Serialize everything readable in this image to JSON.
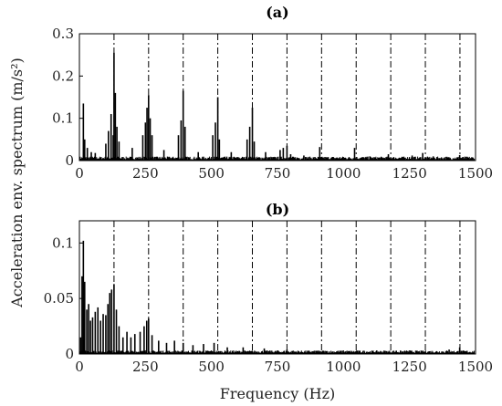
{
  "figure": {
    "ylabel": "Acceleration env. spectrum (m/s²)",
    "xlabel": "Frequency (Hz)"
  },
  "chart_data": [
    {
      "type": "line",
      "title": "(a)",
      "xlim": [
        0,
        1500
      ],
      "ylim": [
        0,
        0.3
      ],
      "x_ticks": [
        0,
        250,
        500,
        750,
        1000,
        1250,
        1500
      ],
      "y_ticks": [
        0,
        0.1,
        0.2,
        0.3
      ],
      "y_tick_labels": [
        "0",
        "0.1",
        "0.2",
        "0.3"
      ],
      "noise_floor": 0.006,
      "series": [
        {
          "values": [
            [
              15,
              0.135
            ],
            [
              20,
              0.05
            ],
            [
              30,
              0.03
            ],
            [
              45,
              0.02
            ],
            [
              60,
              0.018
            ],
            [
              100,
              0.04
            ],
            [
              110,
              0.07
            ],
            [
              120,
              0.11
            ],
            [
              128,
              0.06
            ],
            [
              131,
              0.255
            ],
            [
              136,
              0.16
            ],
            [
              142,
              0.08
            ],
            [
              150,
              0.045
            ],
            [
              200,
              0.03
            ],
            [
              240,
              0.06
            ],
            [
              250,
              0.09
            ],
            [
              256,
              0.125
            ],
            [
              262,
              0.155
            ],
            [
              268,
              0.1
            ],
            [
              275,
              0.06
            ],
            [
              320,
              0.025
            ],
            [
              375,
              0.06
            ],
            [
              385,
              0.095
            ],
            [
              393,
              0.165
            ],
            [
              400,
              0.08
            ],
            [
              450,
              0.02
            ],
            [
              505,
              0.06
            ],
            [
              515,
              0.09
            ],
            [
              524,
              0.15
            ],
            [
              530,
              0.05
            ],
            [
              575,
              0.02
            ],
            [
              635,
              0.05
            ],
            [
              645,
              0.08
            ],
            [
              655,
              0.125
            ],
            [
              662,
              0.045
            ],
            [
              705,
              0.02
            ],
            [
              760,
              0.025
            ],
            [
              772,
              0.03
            ],
            [
              786,
              0.035
            ],
            [
              800,
              0.015
            ],
            [
              850,
              0.012
            ],
            [
              910,
              0.032
            ],
            [
              1042,
              0.03
            ],
            [
              1100,
              0.01
            ],
            [
              1170,
              0.015
            ],
            [
              1260,
              0.012
            ],
            [
              1300,
              0.018
            ],
            [
              1340,
              0.01
            ],
            [
              1440,
              0.013
            ]
          ]
        }
      ],
      "markers_x": [
        131,
        262,
        393,
        524,
        655,
        786,
        917,
        1048,
        1179,
        1310,
        1441
      ]
    },
    {
      "type": "line",
      "title": "(b)",
      "xlim": [
        0,
        1500
      ],
      "ylim": [
        0,
        0.12
      ],
      "x_ticks": [
        0,
        250,
        500,
        750,
        1000,
        1250,
        1500
      ],
      "y_ticks": [
        0,
        0.05,
        0.1
      ],
      "y_tick_labels": [
        "0",
        "0.05",
        "0.1"
      ],
      "noise_floor": 0.002,
      "series": [
        {
          "values": [
            [
              5,
              0.015
            ],
            [
              10,
              0.07
            ],
            [
              15,
              0.102
            ],
            [
              20,
              0.065
            ],
            [
              28,
              0.04
            ],
            [
              35,
              0.045
            ],
            [
              42,
              0.03
            ],
            [
              50,
              0.033
            ],
            [
              60,
              0.038
            ],
            [
              70,
              0.042
            ],
            [
              80,
              0.03
            ],
            [
              90,
              0.036
            ],
            [
              100,
              0.035
            ],
            [
              108,
              0.045
            ],
            [
              115,
              0.055
            ],
            [
              122,
              0.058
            ],
            [
              131,
              0.063
            ],
            [
              140,
              0.04
            ],
            [
              150,
              0.025
            ],
            [
              165,
              0.015
            ],
            [
              180,
              0.02
            ],
            [
              195,
              0.015
            ],
            [
              210,
              0.018
            ],
            [
              230,
              0.02
            ],
            [
              245,
              0.025
            ],
            [
              255,
              0.03
            ],
            [
              262,
              0.032
            ],
            [
              275,
              0.017
            ],
            [
              300,
              0.012
            ],
            [
              330,
              0.01
            ],
            [
              360,
              0.012
            ],
            [
              393,
              0.01
            ],
            [
              430,
              0.008
            ],
            [
              470,
              0.009
            ],
            [
              510,
              0.01
            ],
            [
              560,
              0.006
            ],
            [
              620,
              0.006
            ],
            [
              700,
              0.005
            ],
            [
              786,
              0.004
            ],
            [
              900,
              0.003
            ],
            [
              1050,
              0.003
            ],
            [
              1200,
              0.003
            ],
            [
              1400,
              0.004
            ],
            [
              1440,
              0.006
            ]
          ]
        }
      ],
      "markers_x": [
        131,
        262,
        393,
        524,
        655,
        786,
        917,
        1048,
        1179,
        1310,
        1441
      ]
    }
  ]
}
